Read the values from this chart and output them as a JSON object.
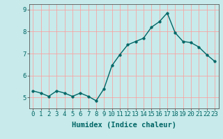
{
  "x": [
    0,
    1,
    2,
    3,
    4,
    5,
    6,
    7,
    8,
    9,
    10,
    11,
    12,
    13,
    14,
    15,
    16,
    17,
    18,
    19,
    20,
    21,
    22,
    23
  ],
  "y": [
    5.3,
    5.2,
    5.05,
    5.3,
    5.2,
    5.05,
    5.2,
    5.05,
    4.85,
    5.4,
    6.45,
    6.95,
    7.4,
    7.55,
    7.7,
    8.2,
    8.45,
    8.85,
    7.95,
    7.55,
    7.5,
    7.3,
    6.95,
    6.65
  ],
  "line_color": "#006666",
  "marker_color": "#006666",
  "bg_color": "#c8eaea",
  "grid_color": "#ff9999",
  "xlabel": "Humidex (Indice chaleur)",
  "ylabel": "",
  "xlim": [
    -0.5,
    23.5
  ],
  "ylim": [
    4.5,
    9.25
  ],
  "yticks": [
    5,
    6,
    7,
    8,
    9
  ],
  "xticks": [
    0,
    1,
    2,
    3,
    4,
    5,
    6,
    7,
    8,
    9,
    10,
    11,
    12,
    13,
    14,
    15,
    16,
    17,
    18,
    19,
    20,
    21,
    22,
    23
  ],
  "tick_label_size": 6.5,
  "xlabel_size": 7.5,
  "linewidth": 1.0,
  "markersize": 2.5
}
